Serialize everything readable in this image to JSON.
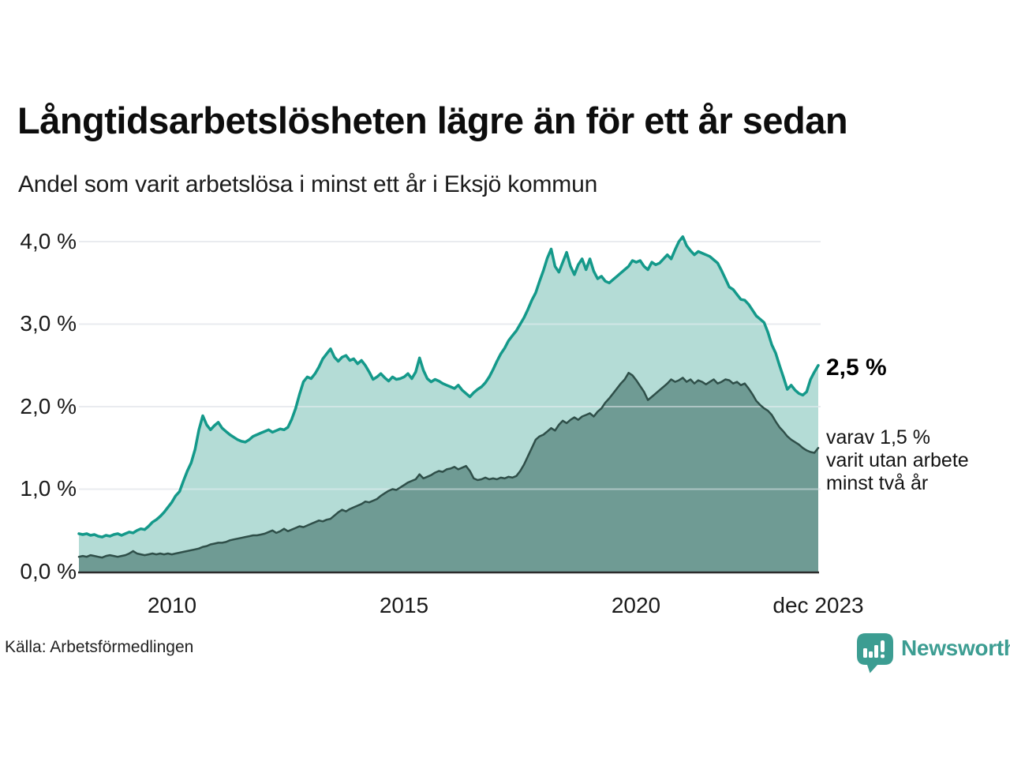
{
  "header": {
    "title": "Långtidsarbetslösheten lägre än för ett år sedan",
    "subtitle": "Andel som varit arbetslösa i minst ett år i Eksjö kommun"
  },
  "chart_data": {
    "type": "area",
    "title": "Långtidsarbetslösheten lägre än för ett år sedan",
    "subtitle": "Andel som varit arbetslösa i minst ett år i Eksjö kommun",
    "x_start": "2008-01",
    "x_end": "2023-12",
    "points_per_year": 12,
    "x_tick_labels": [
      "2010",
      "2015",
      "2020",
      "dec 2023"
    ],
    "y_tick_labels": [
      "4,0 %",
      "3,0 %",
      "2,0 %",
      "1,0 %",
      "0,0 %"
    ],
    "ylim": [
      0,
      4.3
    ],
    "grid": "horizontal",
    "grid_color": "#e4e6ea",
    "axis_color": "#2b2b2b",
    "legend_position": "none",
    "series": [
      {
        "name": "arbetslösa minst ett år",
        "color": "#14998A",
        "fill": "#B4DCD6",
        "stroke_width": 3.5,
        "values": [
          0.46,
          0.45,
          0.46,
          0.44,
          0.45,
          0.43,
          0.42,
          0.44,
          0.43,
          0.45,
          0.46,
          0.44,
          0.46,
          0.48,
          0.47,
          0.5,
          0.52,
          0.51,
          0.55,
          0.6,
          0.63,
          0.67,
          0.72,
          0.78,
          0.84,
          0.92,
          0.97,
          1.1,
          1.22,
          1.32,
          1.48,
          1.72,
          1.89,
          1.78,
          1.72,
          1.77,
          1.81,
          1.74,
          1.7,
          1.66,
          1.63,
          1.6,
          1.58,
          1.57,
          1.6,
          1.64,
          1.66,
          1.68,
          1.7,
          1.72,
          1.69,
          1.71,
          1.73,
          1.72,
          1.75,
          1.85,
          1.98,
          2.15,
          2.3,
          2.36,
          2.34,
          2.4,
          2.48,
          2.58,
          2.64,
          2.7,
          2.6,
          2.55,
          2.6,
          2.62,
          2.56,
          2.58,
          2.52,
          2.56,
          2.5,
          2.42,
          2.33,
          2.36,
          2.4,
          2.35,
          2.31,
          2.36,
          2.33,
          2.34,
          2.36,
          2.4,
          2.34,
          2.42,
          2.59,
          2.44,
          2.34,
          2.3,
          2.33,
          2.31,
          2.28,
          2.26,
          2.24,
          2.22,
          2.26,
          2.2,
          2.16,
          2.12,
          2.17,
          2.21,
          2.24,
          2.29,
          2.36,
          2.45,
          2.55,
          2.64,
          2.71,
          2.8,
          2.86,
          2.92,
          3.0,
          3.08,
          3.18,
          3.29,
          3.38,
          3.52,
          3.65,
          3.8,
          3.91,
          3.7,
          3.63,
          3.75,
          3.87,
          3.7,
          3.6,
          3.72,
          3.79,
          3.66,
          3.79,
          3.64,
          3.55,
          3.58,
          3.52,
          3.5,
          3.54,
          3.58,
          3.62,
          3.66,
          3.7,
          3.77,
          3.75,
          3.77,
          3.7,
          3.66,
          3.75,
          3.72,
          3.74,
          3.79,
          3.84,
          3.79,
          3.9,
          4.0,
          4.06,
          3.95,
          3.89,
          3.84,
          3.88,
          3.86,
          3.84,
          3.82,
          3.78,
          3.74,
          3.65,
          3.55,
          3.45,
          3.42,
          3.36,
          3.3,
          3.29,
          3.24,
          3.17,
          3.1,
          3.06,
          3.02,
          2.9,
          2.75,
          2.65,
          2.5,
          2.36,
          2.21,
          2.26,
          2.2,
          2.16,
          2.14,
          2.18,
          2.33,
          2.42,
          2.5
        ]
      },
      {
        "name": "varav utan arbete minst två år",
        "color": "#2F4F49",
        "fill": "#6F9B94",
        "stroke_width": 2.5,
        "values": [
          0.18,
          0.19,
          0.18,
          0.2,
          0.19,
          0.18,
          0.17,
          0.19,
          0.2,
          0.19,
          0.18,
          0.19,
          0.2,
          0.22,
          0.25,
          0.22,
          0.21,
          0.2,
          0.21,
          0.22,
          0.21,
          0.22,
          0.21,
          0.22,
          0.21,
          0.22,
          0.23,
          0.24,
          0.25,
          0.26,
          0.27,
          0.28,
          0.3,
          0.31,
          0.33,
          0.34,
          0.35,
          0.35,
          0.36,
          0.38,
          0.39,
          0.4,
          0.41,
          0.42,
          0.43,
          0.44,
          0.44,
          0.45,
          0.46,
          0.48,
          0.5,
          0.47,
          0.49,
          0.52,
          0.49,
          0.51,
          0.53,
          0.55,
          0.54,
          0.56,
          0.58,
          0.6,
          0.62,
          0.61,
          0.63,
          0.64,
          0.68,
          0.72,
          0.75,
          0.73,
          0.76,
          0.78,
          0.8,
          0.82,
          0.85,
          0.84,
          0.86,
          0.88,
          0.92,
          0.95,
          0.98,
          1.0,
          0.99,
          1.02,
          1.05,
          1.08,
          1.1,
          1.12,
          1.18,
          1.13,
          1.15,
          1.17,
          1.2,
          1.22,
          1.21,
          1.24,
          1.25,
          1.27,
          1.24,
          1.26,
          1.28,
          1.22,
          1.13,
          1.11,
          1.12,
          1.14,
          1.12,
          1.13,
          1.12,
          1.14,
          1.13,
          1.15,
          1.14,
          1.16,
          1.22,
          1.3,
          1.4,
          1.5,
          1.6,
          1.64,
          1.66,
          1.7,
          1.74,
          1.71,
          1.78,
          1.83,
          1.8,
          1.84,
          1.87,
          1.84,
          1.88,
          1.9,
          1.92,
          1.88,
          1.94,
          1.98,
          2.05,
          2.1,
          2.16,
          2.22,
          2.28,
          2.33,
          2.41,
          2.38,
          2.32,
          2.25,
          2.18,
          2.08,
          2.12,
          2.16,
          2.2,
          2.24,
          2.28,
          2.33,
          2.3,
          2.32,
          2.35,
          2.3,
          2.33,
          2.28,
          2.32,
          2.3,
          2.27,
          2.3,
          2.33,
          2.28,
          2.3,
          2.33,
          2.32,
          2.28,
          2.3,
          2.26,
          2.28,
          2.22,
          2.15,
          2.07,
          2.02,
          1.98,
          1.95,
          1.9,
          1.82,
          1.75,
          1.7,
          1.64,
          1.6,
          1.57,
          1.54,
          1.5,
          1.47,
          1.45,
          1.44,
          1.5
        ]
      }
    ],
    "annotations": {
      "end_value": "2,5 %",
      "note_lines": [
        "varav 1,5 %",
        "varit utan arbete",
        "minst två år"
      ]
    }
  },
  "footer": {
    "source": "Källa: Arbetsförmedlingen",
    "brand": "Newsworthy",
    "brand_color": "#3C9D92"
  }
}
